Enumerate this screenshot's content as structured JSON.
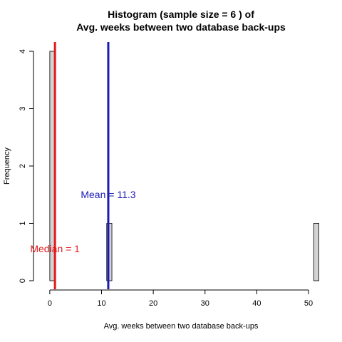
{
  "chart_data": {
    "type": "bar",
    "title_line1": "Histogram (sample size =  6 ) of",
    "title_line2": "Avg. weeks between two database back-ups",
    "xlabel": "Avg. weeks between two database back-ups",
    "ylabel": "Frequency",
    "xlim": [
      -1.5,
      52.2
    ],
    "ylim": [
      0,
      4
    ],
    "x_ticks": [
      0,
      10,
      20,
      30,
      40,
      50
    ],
    "y_ticks": [
      0,
      1,
      2,
      3,
      4
    ],
    "bins": [
      {
        "start": 0,
        "end": 1,
        "count": 4
      },
      {
        "start": 11,
        "end": 12,
        "count": 1
      },
      {
        "start": 51,
        "end": 52,
        "count": 1
      }
    ],
    "bin_range": [
      0,
      52
    ],
    "bin_width": 1,
    "bar_fill": "#d3d3d3",
    "mean": {
      "value": 11.3,
      "label": "Mean = 11.3",
      "color": "#1a1ab4"
    },
    "median": {
      "value": 1,
      "label": "Median = 1",
      "color": "#e31a1c"
    }
  }
}
